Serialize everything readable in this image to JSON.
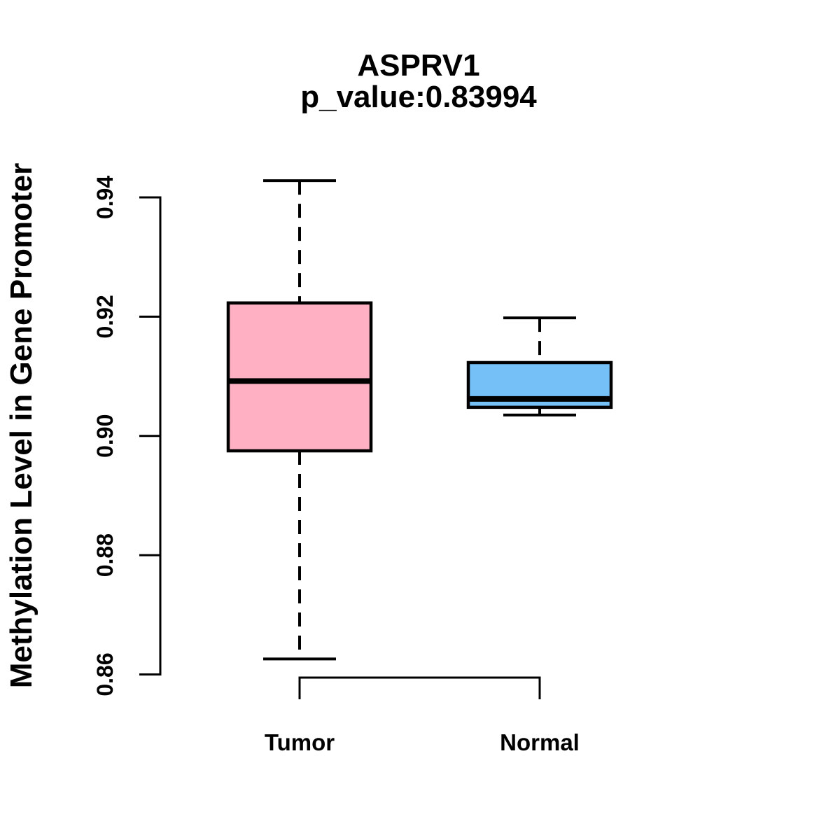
{
  "title": "ASPRV1",
  "subtitle": "p_value:0.83994",
  "ylabel": "Methylation Level in Gene Promoter",
  "xlabel": "",
  "chart_data": {
    "type": "boxplot",
    "title": "ASPRV1",
    "subtitle": "p_value:0.83994",
    "ylabel": "Methylation Level in Gene Promoter",
    "categories": [
      "Tumor",
      "Normal"
    ],
    "series": [
      {
        "name": "Tumor",
        "fill_color": "#FFB0C3",
        "whisker_low": 0.8626,
        "q1": 0.8975,
        "median": 0.9092,
        "q3": 0.9223,
        "whisker_high": 0.9428
      },
      {
        "name": "Normal",
        "fill_color": "#76C0F8",
        "whisker_low": 0.9035,
        "q1": 0.9048,
        "median": 0.9062,
        "q3": 0.9123,
        "whisker_high": 0.9198
      }
    ],
    "ylim": [
      0.86,
      0.94
    ],
    "yticks": [
      0.86,
      0.88,
      0.9,
      0.92,
      0.94
    ],
    "ytick_labels": [
      "0.86",
      "0.88",
      "0.90",
      "0.92",
      "0.94"
    ],
    "whisker_style": "dashed",
    "box_border_color": "#000000",
    "median_color": "#000000",
    "axis_color": "#000000",
    "grid": "off",
    "legend": "none"
  }
}
